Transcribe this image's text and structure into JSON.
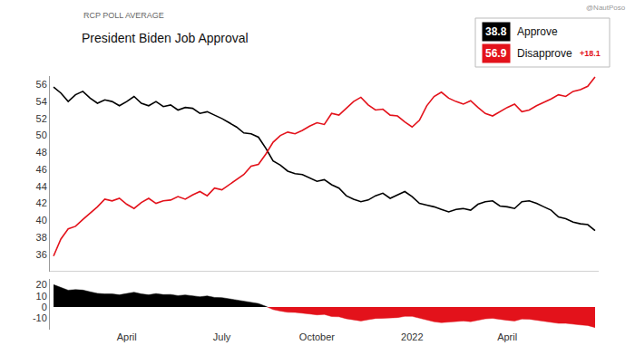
{
  "chart_data": [
    {
      "type": "line",
      "title": "President Biden Job Approval",
      "subtitle": "RCP POLL AVERAGE",
      "annotations": [
        "@NautPoso"
      ],
      "categories": [
        null,
        null,
        null,
        null,
        null,
        null,
        null,
        null,
        null,
        null,
        "April",
        null,
        null,
        null,
        null,
        null,
        null,
        null,
        null,
        null,
        null,
        null,
        null,
        "July",
        null,
        null,
        null,
        null,
        null,
        null,
        null,
        null,
        null,
        null,
        null,
        null,
        "October",
        null,
        null,
        null,
        null,
        null,
        null,
        null,
        null,
        null,
        null,
        null,
        null,
        "2022",
        null,
        null,
        null,
        null,
        null,
        null,
        null,
        null,
        null,
        null,
        null,
        null,
        "April",
        null,
        null,
        null,
        null,
        null,
        null,
        null,
        null,
        null,
        null,
        null,
        null
      ],
      "series": [
        {
          "name": "Approve",
          "color": "#000000",
          "latest": 38.8,
          "values": [
            55.7,
            55.0,
            54.0,
            54.8,
            55.2,
            54.4,
            53.8,
            54.2,
            54.0,
            53.5,
            54.0,
            54.6,
            53.8,
            53.5,
            54.0,
            53.4,
            53.6,
            53.0,
            53.3,
            53.2,
            52.6,
            52.8,
            52.4,
            52.0,
            51.5,
            51.0,
            50.3,
            50.2,
            49.8,
            48.5,
            47.0,
            46.5,
            45.8,
            45.5,
            45.4,
            45.0,
            44.6,
            44.8,
            44.2,
            43.8,
            42.9,
            42.5,
            42.2,
            42.4,
            42.9,
            43.2,
            42.6,
            43.0,
            43.4,
            42.8,
            42.0,
            41.8,
            41.6,
            41.3,
            41.0,
            41.3,
            41.4,
            41.2,
            41.9,
            42.2,
            42.3,
            41.7,
            41.6,
            41.4,
            42.2,
            42.3,
            42.0,
            41.6,
            41.2,
            40.4,
            40.2,
            39.8,
            39.6,
            39.5,
            38.8
          ]
        },
        {
          "name": "Disapprove",
          "color": "#e3121b",
          "latest": 56.9,
          "lead": {
            "value": 18.1,
            "label": "+18.1"
          },
          "values": [
            35.8,
            37.8,
            39.0,
            39.3,
            40.1,
            40.8,
            41.6,
            42.5,
            42.3,
            42.6,
            41.9,
            41.4,
            42.1,
            42.6,
            42.0,
            42.3,
            42.4,
            42.8,
            42.5,
            43.0,
            43.4,
            42.9,
            43.8,
            43.6,
            44.2,
            44.8,
            45.4,
            46.4,
            46.6,
            47.8,
            49.2,
            50.0,
            50.4,
            50.2,
            50.6,
            51.1,
            51.5,
            51.3,
            52.6,
            52.4,
            53.2,
            54.0,
            54.5,
            53.6,
            53.0,
            53.1,
            52.4,
            52.3,
            51.6,
            51.0,
            51.8,
            53.5,
            54.6,
            55.1,
            54.4,
            54.0,
            53.7,
            54.1,
            53.3,
            52.6,
            52.3,
            52.8,
            53.3,
            53.7,
            52.8,
            53.0,
            53.5,
            53.9,
            54.3,
            54.8,
            54.6,
            55.2,
            55.4,
            55.8,
            56.9
          ]
        }
      ],
      "ylim": [
        34,
        57
      ],
      "yticks": [
        36,
        38,
        40,
        42,
        44,
        46,
        48,
        50,
        52,
        54,
        56
      ],
      "grid": false,
      "tick_labels": "y"
    },
    {
      "type": "area",
      "categories": [
        null,
        null,
        null,
        null,
        null,
        null,
        null,
        null,
        null,
        null,
        "April",
        null,
        null,
        null,
        null,
        null,
        null,
        null,
        null,
        null,
        null,
        null,
        null,
        "July",
        null,
        null,
        null,
        null,
        null,
        null,
        null,
        null,
        null,
        null,
        null,
        null,
        "October",
        null,
        null,
        null,
        null,
        null,
        null,
        null,
        null,
        null,
        null,
        null,
        null,
        "2022",
        null,
        null,
        null,
        null,
        null,
        null,
        null,
        null,
        null,
        null,
        null,
        null,
        "April",
        null,
        null,
        null,
        null,
        null,
        null,
        null,
        null,
        null,
        null,
        null,
        null
      ],
      "values": [
        19.9,
        17.2,
        15.0,
        15.5,
        15.1,
        13.6,
        12.2,
        11.7,
        11.7,
        10.9,
        12.1,
        13.2,
        11.7,
        10.9,
        12.0,
        11.1,
        11.2,
        10.2,
        10.8,
        10.2,
        9.2,
        9.9,
        8.6,
        8.4,
        7.3,
        6.2,
        4.9,
        3.8,
        3.2,
        0.7,
        -2.2,
        -3.5,
        -4.6,
        -4.7,
        -5.2,
        -6.1,
        -6.9,
        -6.5,
        -8.4,
        -8.6,
        -10.3,
        -11.5,
        -12.3,
        -11.2,
        -10.1,
        -9.9,
        -9.8,
        -9.3,
        -8.2,
        -8.2,
        -9.8,
        -11.7,
        -13.0,
        -13.8,
        -13.4,
        -12.7,
        -12.3,
        -12.9,
        -11.4,
        -10.4,
        -10.0,
        -11.1,
        -11.7,
        -12.3,
        -10.6,
        -10.7,
        -11.5,
        -12.3,
        -13.1,
        -14.4,
        -14.4,
        -15.4,
        -15.8,
        -16.3,
        -18.1
      ],
      "colors": [
        "#000000",
        "#e3121b"
      ],
      "ylim": [
        -20,
        25
      ],
      "yticks": [
        -10,
        0,
        10,
        20
      ],
      "grid": false
    }
  ]
}
